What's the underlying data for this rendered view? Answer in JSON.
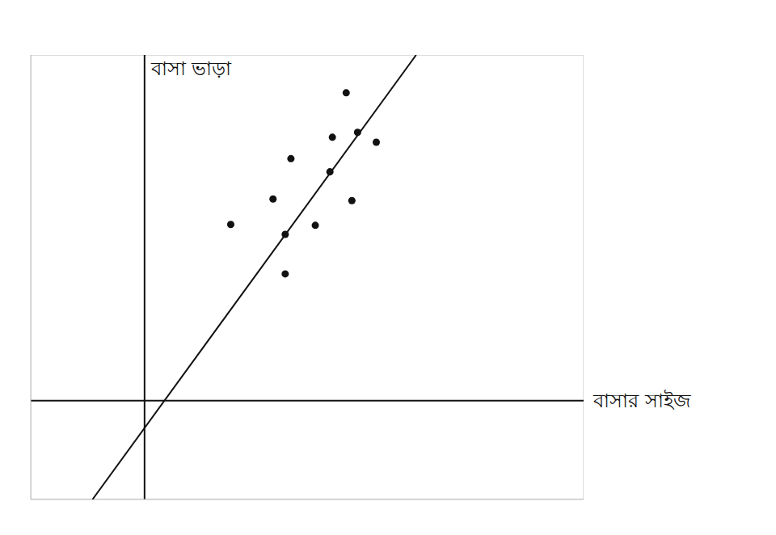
{
  "chart_data": {
    "type": "scatter",
    "x_label": "বাসার সাইজ",
    "y_label": "বাসা ভাড়া",
    "x": [
      12.4,
      11.55,
      13.1,
      14.25,
      9.0,
      11.4,
      7.9,
      12.75,
      5.3,
      8.65,
      10.5,
      8.65
    ],
    "values": [
      18.7,
      16.0,
      16.3,
      15.7,
      14.7,
      13.9,
      12.25,
      12.15,
      10.7,
      10.1,
      10.65,
      7.7
    ],
    "color": "#111111",
    "marker": "circle",
    "xlim": [
      -7,
      27
    ],
    "ylim": [
      -6,
      21
    ],
    "tick_labels": false,
    "grid": false,
    "trend_line": {
      "type": "line",
      "x": [
        -3.2,
        16.7
      ],
      "values": [
        -6,
        21
      ],
      "color": "#111111",
      "line_style": "solid"
    }
  }
}
